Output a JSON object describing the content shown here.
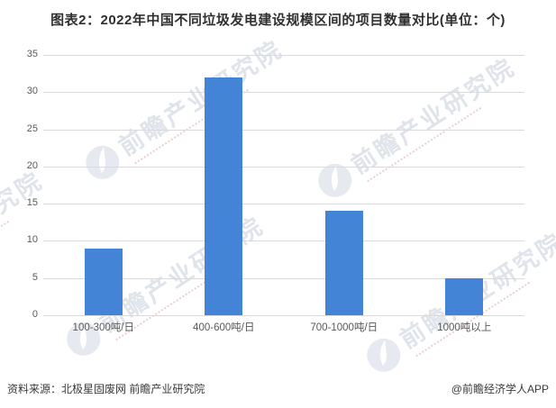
{
  "title": "图表2：2022年中国不同垃圾发电建设规模区间的项目数量对比(单位：个)",
  "chart_data": {
    "type": "bar",
    "title": "图表2：2022年中国不同垃圾发电建设规模区间的项目数量对比(单位：个)",
    "categories": [
      "100-300吨/日",
      "400-600吨/日",
      "700-1000吨/日",
      "1000吨以上"
    ],
    "values": [
      9,
      32,
      14,
      5
    ],
    "xlabel": "",
    "ylabel": "",
    "ylim": [
      0,
      35
    ],
    "yticks": [
      0,
      5,
      10,
      15,
      20,
      25,
      30,
      35
    ],
    "grid": true,
    "legend": false,
    "bar_color": "#4384d6"
  },
  "footer": {
    "source": "资料来源：北极星固废网 前瞻产业研究院",
    "credit": "@前瞻经济学人APP"
  },
  "watermark": {
    "text": "前瞻产业研究院"
  },
  "colors": {
    "bar": "#4384d6",
    "grid": "#dadada",
    "tick_text": "#595959",
    "title_text": "#303030",
    "footer_text": "#3a3a3a",
    "watermark": "#b0b9cb"
  }
}
